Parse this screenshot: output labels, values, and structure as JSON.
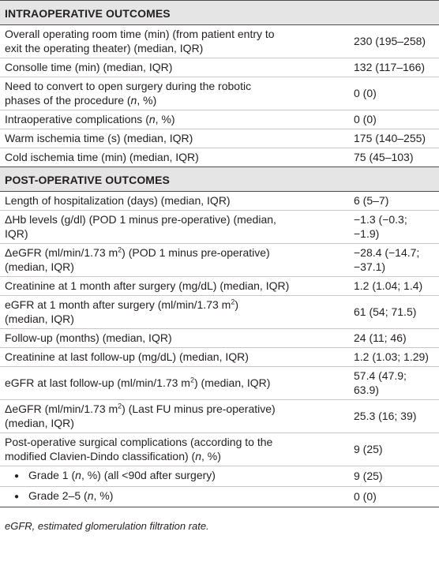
{
  "sections": {
    "intra": {
      "title": "INTRAOPERATIVE OUTCOMES",
      "rows": [
        {
          "l1": "Overall operating room time (min) (from patient entry to",
          "l2": "exit the operating theater) (median, IQR)",
          "value": "230 (195–258)"
        },
        {
          "text": "Consolle time (min) (median, IQR)",
          "value": "132 (117–166)"
        },
        {
          "l1": "Need to convert to open surgery during the robotic",
          "l2a": "phases of the procedure (",
          "n": "n",
          "l2b": ", %)",
          "value": "0 (0)"
        },
        {
          "a": "Intraoperative complications (",
          "n": "n",
          "b": ", %)",
          "value": "0 (0)"
        },
        {
          "text": "Warm ischemia time (s) (median, IQR)",
          "value": "175 (140–255)"
        },
        {
          "text": "Cold ischemia time (min) (median, IQR)",
          "value": "75 (45–103)"
        }
      ]
    },
    "post": {
      "title": "POST-OPERATIVE OUTCOMES",
      "rows": [
        {
          "text": "Length of hospitalization (days) (median, IQR)",
          "value": "6 (5–7)"
        },
        {
          "l1": "ΔHb levels (g/dl) (POD 1 minus pre-operative) (median,",
          "l2": "IQR)",
          "value": "−1.3 (−0.3; −1.9)"
        },
        {
          "l1a": "ΔeGFR (ml/min/1.73 m",
          "sup": "2",
          "l1b": ") (POD 1 minus pre-operative)",
          "l2": "(median, IQR)",
          "value": "−28.4 (−14.7; −37.1)"
        },
        {
          "text": "Creatinine at 1 month after surgery (mg/dL) (median, IQR)",
          "value": "1.2 (1.04; 1.4)"
        },
        {
          "l1a": "eGFR at 1 month after surgery (ml/min/1.73 m",
          "sup": "2",
          "l1b": ")",
          "l2": "(median, IQR)",
          "value": "61 (54; 71.5)"
        },
        {
          "text": "Follow-up (months) (median, IQR)",
          "value": "24 (11; 46)"
        },
        {
          "text": "Creatinine at last follow-up (mg/dL) (median, IQR)",
          "value": "1.2 (1.03; 1.29)"
        },
        {
          "a": "eGFR at last follow-up (ml/min/1.73 m",
          "sup": "2",
          "b": ") (median, IQR)",
          "value": "57.4 (47.9; 63.9)"
        },
        {
          "l1a": "ΔeGFR (ml/min/1.73 m",
          "sup": "2",
          "l1b": ") (Last FU minus pre-operative)",
          "l2": "(median, IQR)",
          "value": "25.3 (16; 39)"
        },
        {
          "l1": "Post-operative surgical complications (according to the",
          "l2a": "modified Clavien-Dindo classification) (",
          "n": "n",
          "l2b": ", %)",
          "value": "9 (25)"
        },
        {
          "bullet": "●",
          "a": "Grade 1 (",
          "n": "n",
          "b": ", %) (all <90d after surgery)",
          "value": "9 (25)"
        },
        {
          "bullet": "●",
          "a": "Grade 2–5 (",
          "n": "n",
          "b": ", %)",
          "value": "0 (0)"
        }
      ]
    }
  },
  "footnote": "eGFR, estimated glomerulation filtration rate."
}
